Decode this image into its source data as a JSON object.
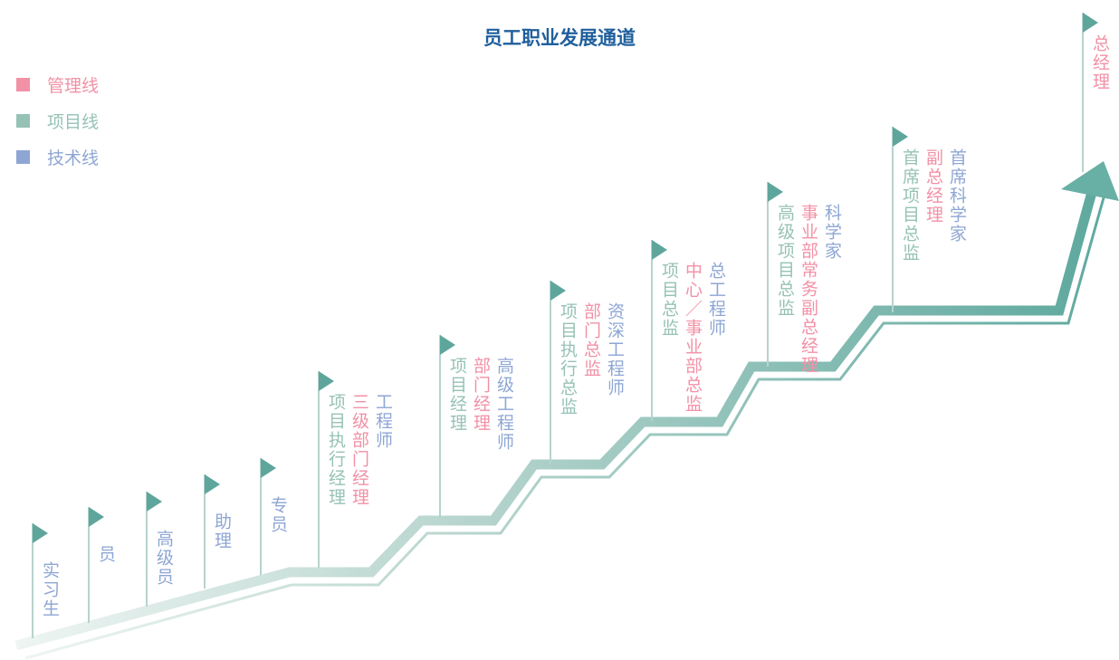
{
  "title": "员工职业发展通道",
  "legend": [
    {
      "label": "管理线",
      "color": "#f291a6"
    },
    {
      "label": "项目线",
      "color": "#96c2b6"
    },
    {
      "label": "技术线",
      "color": "#8ea6d4"
    }
  ],
  "stages": [
    {
      "columns": [
        {
          "text": "实习生",
          "color": "#8ea6d4"
        }
      ]
    },
    {
      "columns": [
        {
          "text": "员",
          "color": "#8ea6d4"
        }
      ]
    },
    {
      "columns": [
        {
          "text": "高级员",
          "color": "#8ea6d4"
        }
      ]
    },
    {
      "columns": [
        {
          "text": "助理",
          "color": "#8ea6d4"
        }
      ]
    },
    {
      "columns": [
        {
          "text": "专员",
          "color": "#8ea6d4"
        }
      ]
    },
    {
      "columns": [
        {
          "text": "项目执行经理",
          "color": "#96c2b6"
        },
        {
          "text": "三级部门经理",
          "color": "#f291a6"
        },
        {
          "text": "工程师",
          "color": "#8ea6d4"
        }
      ]
    },
    {
      "columns": [
        {
          "text": "项目经理",
          "color": "#96c2b6"
        },
        {
          "text": "部门经理",
          "color": "#f291a6"
        },
        {
          "text": "高级工程师",
          "color": "#8ea6d4"
        }
      ]
    },
    {
      "columns": [
        {
          "text": "项目执行总监",
          "color": "#96c2b6"
        },
        {
          "text": "部门总监",
          "color": "#f291a6"
        },
        {
          "text": "资深工程师",
          "color": "#8ea6d4"
        }
      ]
    },
    {
      "columns": [
        {
          "text": "项目总监",
          "color": "#96c2b6"
        },
        {
          "text": "中心／事业部总监",
          "color": "#f291a6"
        },
        {
          "text": "总工程师",
          "color": "#8ea6d4"
        }
      ]
    },
    {
      "columns": [
        {
          "text": "高级项目总监",
          "color": "#96c2b6"
        },
        {
          "text": "事业部常务副总经理",
          "color": "#f291a6"
        },
        {
          "text": "科学家",
          "color": "#8ea6d4"
        }
      ]
    },
    {
      "columns": [
        {
          "text": "首席项目总监",
          "color": "#96c2b6"
        },
        {
          "text": "副总经理",
          "color": "#f291a6"
        },
        {
          "text": "首席科学家",
          "color": "#8ea6d4"
        }
      ]
    },
    {
      "columns": [
        {
          "text": "总经理",
          "color": "#f291a6"
        }
      ]
    }
  ]
}
